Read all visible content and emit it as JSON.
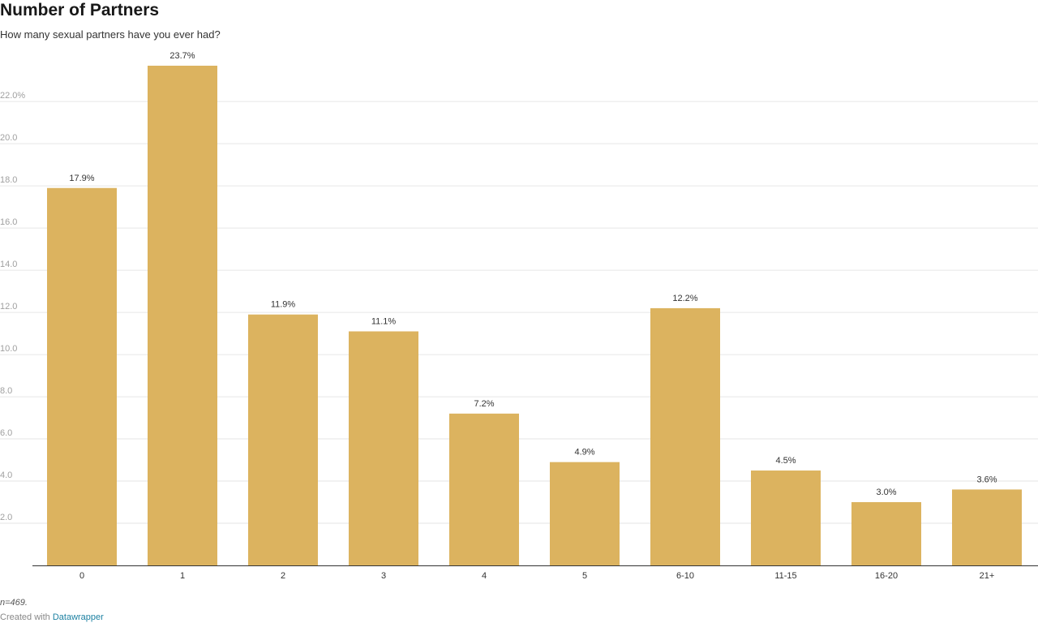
{
  "header": {
    "title": "Number of Partners",
    "subtitle": "How many sexual partners have you ever had?"
  },
  "footer": {
    "notes": "n=469.",
    "byline_prefix": "Created with",
    "byline_link": "Datawrapper"
  },
  "colors": {
    "bar": "#dcb35f",
    "grid": "#e6e6e6",
    "axis": "#333333",
    "tick_label": "#a0a0a0",
    "category_label": "#333333",
    "value_label": "#333333",
    "link": "#1d81a2"
  },
  "chart_data": {
    "type": "bar",
    "title": "Number of Partners",
    "subtitle": "How many sexual partners have you ever had?",
    "categories": [
      "0",
      "1",
      "2",
      "3",
      "4",
      "5",
      "6-10",
      "11-15",
      "16-20",
      "21+"
    ],
    "values": [
      17.9,
      23.7,
      11.9,
      11.1,
      7.2,
      4.9,
      12.2,
      4.5,
      3.0,
      3.6
    ],
    "value_labels": [
      "17.9%",
      "23.7%",
      "11.9%",
      "11.1%",
      "7.2%",
      "4.9%",
      "12.2%",
      "4.5%",
      "3.0%",
      "3.6%"
    ],
    "y_ticks": [
      2,
      4,
      6,
      8,
      10,
      12,
      14,
      16,
      18,
      20,
      22
    ],
    "y_tick_labels": [
      "2.0",
      "4.0",
      "6.0",
      "8.0",
      "10.0",
      "12.0",
      "14.0",
      "16.0",
      "18.0",
      "20.0",
      "22.0%"
    ],
    "ylim": [
      0,
      23.7
    ],
    "xlabel": "",
    "ylabel": "",
    "grid": true,
    "legend": "none"
  }
}
